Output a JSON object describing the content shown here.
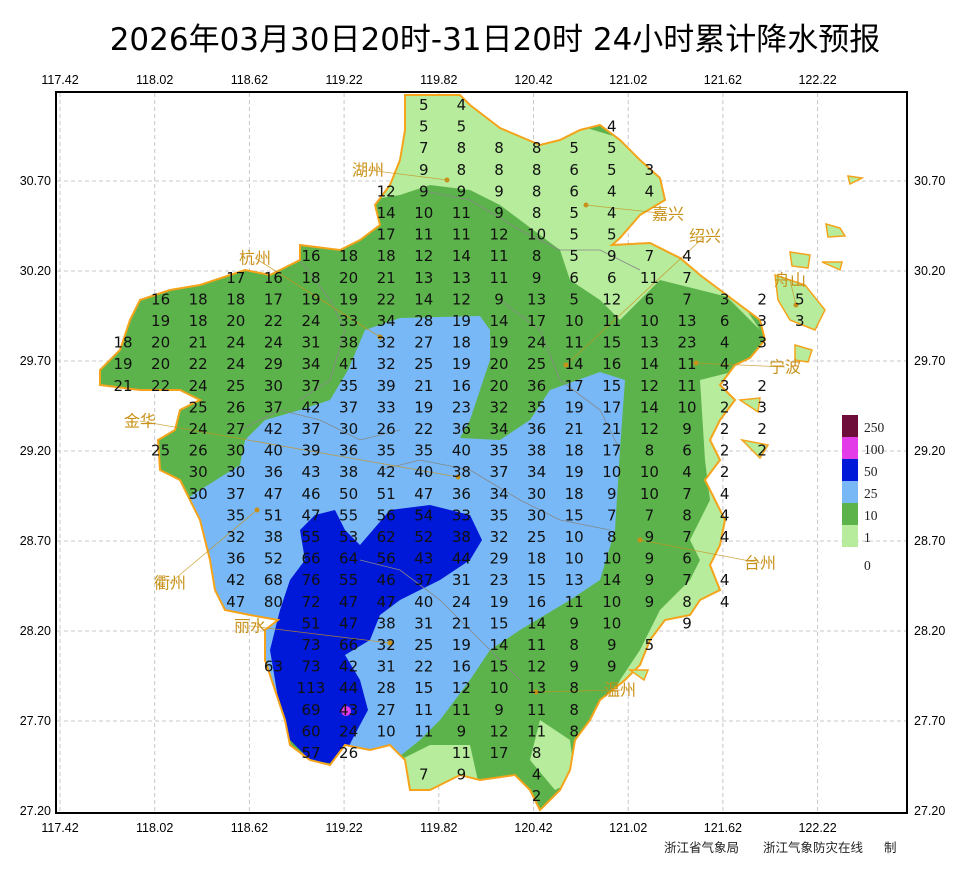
{
  "title": "2026年03月30日20时-31日20时  24小时累计降水预报",
  "longitude_labels": [
    "117.42",
    "118.02",
    "118.62",
    "119.22",
    "119.82",
    "120.42",
    "121.02",
    "121.62",
    "122.22"
  ],
  "latitude_labels": [
    "30.70",
    "30.20",
    "29.70",
    "29.20",
    "28.70",
    "28.20",
    "27.70",
    "27.20"
  ],
  "cities": [
    "湖州",
    "嘉兴",
    "杭州",
    "绍兴",
    "宁波",
    "舟山",
    "衢州",
    "金华",
    "台州",
    "丽水",
    "温州"
  ],
  "legend": {
    "levels": [
      {
        "label": "250",
        "color": "#6e0d3a"
      },
      {
        "label": "100",
        "color": "#e43be8"
      },
      {
        "label": "50",
        "color": "#0018d8"
      },
      {
        "label": "25",
        "color": "#78b8f6"
      },
      {
        "label": "10",
        "color": "#5db34b"
      },
      {
        "label": "1",
        "color": "#b6ec9c"
      }
    ],
    "zero_label": "0"
  },
  "footer": {
    "agency": "浙江省气象局",
    "site": "浙江气象防灾在线",
    "suffix": "制"
  },
  "grid_values": [
    [
      null,
      null,
      null,
      null,
      null,
      null,
      null,
      null,
      5,
      4
    ],
    [
      null,
      null,
      null,
      null,
      null,
      null,
      null,
      null,
      5,
      5,
      null,
      null,
      null,
      4
    ],
    [
      null,
      null,
      null,
      null,
      null,
      null,
      null,
      null,
      7,
      8,
      8,
      8,
      5,
      5
    ],
    [
      null,
      null,
      null,
      null,
      null,
      null,
      null,
      null,
      9,
      8,
      8,
      8,
      6,
      5,
      3
    ],
    [
      null,
      null,
      null,
      null,
      null,
      null,
      null,
      12,
      9,
      9,
      9,
      8,
      6,
      4,
      4
    ],
    [
      null,
      null,
      null,
      null,
      null,
      null,
      null,
      14,
      10,
      11,
      9,
      8,
      5,
      4
    ],
    [
      null,
      null,
      null,
      null,
      null,
      null,
      null,
      17,
      11,
      11,
      12,
      10,
      5,
      5
    ],
    [
      null,
      null,
      null,
      null,
      null,
      16,
      18,
      18,
      12,
      14,
      11,
      8,
      5,
      9,
      7,
      4
    ],
    [
      null,
      null,
      null,
      17,
      16,
      18,
      20,
      21,
      13,
      13,
      11,
      9,
      6,
      6,
      11,
      7
    ],
    [
      null,
      16,
      18,
      18,
      17,
      19,
      19,
      22,
      14,
      12,
      9,
      13,
      5,
      12,
      6,
      7,
      3,
      2,
      5
    ],
    [
      null,
      19,
      18,
      20,
      22,
      24,
      33,
      34,
      28,
      19,
      14,
      17,
      10,
      11,
      10,
      13,
      6,
      3,
      3
    ],
    [
      18,
      20,
      21,
      24,
      24,
      31,
      38,
      32,
      27,
      18,
      19,
      24,
      11,
      15,
      13,
      23,
      4,
      3
    ],
    [
      19,
      20,
      22,
      24,
      29,
      34,
      41,
      32,
      25,
      19,
      20,
      25,
      14,
      16,
      14,
      11,
      4
    ],
    [
      21,
      22,
      24,
      25,
      30,
      37,
      35,
      39,
      21,
      16,
      20,
      36,
      17,
      15,
      12,
      11,
      3,
      2
    ],
    [
      null,
      null,
      25,
      26,
      37,
      42,
      37,
      33,
      19,
      23,
      32,
      35,
      19,
      17,
      14,
      10,
      2,
      3
    ],
    [
      null,
      null,
      24,
      27,
      42,
      37,
      30,
      26,
      22,
      36,
      34,
      36,
      21,
      21,
      12,
      9,
      2,
      2
    ],
    [
      null,
      25,
      26,
      30,
      40,
      39,
      36,
      35,
      35,
      40,
      35,
      38,
      18,
      17,
      8,
      6,
      2,
      2
    ],
    [
      null,
      null,
      30,
      30,
      36,
      43,
      38,
      42,
      40,
      38,
      37,
      34,
      19,
      10,
      10,
      4,
      2
    ],
    [
      null,
      null,
      30,
      37,
      47,
      46,
      50,
      51,
      47,
      36,
      34,
      30,
      18,
      9,
      10,
      7,
      4
    ],
    [
      null,
      null,
      null,
      35,
      51,
      47,
      55,
      56,
      54,
      33,
      35,
      30,
      15,
      7,
      7,
      8,
      4
    ],
    [
      null,
      null,
      null,
      32,
      38,
      55,
      53,
      62,
      52,
      38,
      32,
      25,
      10,
      8,
      9,
      7,
      4
    ],
    [
      null,
      null,
      null,
      36,
      52,
      66,
      64,
      56,
      43,
      44,
      29,
      18,
      10,
      10,
      9,
      6
    ],
    [
      null,
      null,
      null,
      42,
      68,
      76,
      55,
      46,
      37,
      31,
      23,
      15,
      13,
      14,
      9,
      7,
      4
    ],
    [
      null,
      null,
      null,
      47,
      80,
      72,
      47,
      47,
      40,
      24,
      19,
      16,
      11,
      10,
      9,
      8,
      4
    ],
    [
      null,
      null,
      null,
      null,
      null,
      51,
      47,
      38,
      31,
      21,
      15,
      14,
      9,
      10,
      null,
      9
    ],
    [
      null,
      null,
      null,
      null,
      null,
      73,
      66,
      32,
      25,
      19,
      14,
      11,
      8,
      9,
      5
    ],
    [
      null,
      null,
      null,
      null,
      63,
      73,
      42,
      31,
      22,
      16,
      15,
      12,
      9,
      9
    ],
    [
      null,
      null,
      null,
      null,
      null,
      113,
      44,
      28,
      15,
      12,
      10,
      13,
      8
    ],
    [
      null,
      null,
      null,
      null,
      null,
      69,
      43,
      27,
      11,
      11,
      9,
      11,
      8
    ],
    [
      null,
      null,
      null,
      null,
      null,
      60,
      24,
      10,
      11,
      9,
      12,
      11,
      8
    ],
    [
      null,
      null,
      null,
      null,
      null,
      57,
      26,
      null,
      null,
      11,
      17,
      8
    ],
    [
      null,
      null,
      null,
      null,
      null,
      null,
      null,
      null,
      7,
      9,
      null,
      4
    ],
    [
      null,
      null,
      null,
      null,
      null,
      null,
      null,
      null,
      null,
      null,
      null,
      2
    ]
  ]
}
